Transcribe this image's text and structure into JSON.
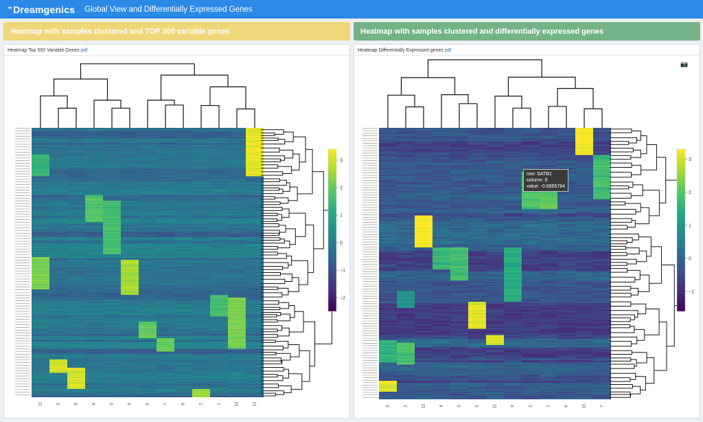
{
  "header": {
    "logo": "Dreamgenics",
    "title": "Global View and Differentially Expressed Genes"
  },
  "left_panel": {
    "heading": "Heatmap with samples clustered and TOP 500 variable genes",
    "box_title": "Heatmap Top 500 Variable Genes",
    "pdf_link": "pdf"
  },
  "right_panel": {
    "heading": "Heatmap with samples clustered and differentially expressed genes",
    "box_title": "Heatmap Differentially Expressed genes",
    "pdf_link": "pdf",
    "camera_icon": "camera-icon",
    "tooltip": {
      "row": "row: SATB1",
      "column": "column: 9",
      "value": "value: -0.6865784"
    }
  },
  "colors": {
    "header": "#2b8ae6",
    "left_heading": "#f0d77a",
    "right_heading": "#74b388"
  },
  "chart_data": [
    {
      "type": "heatmap",
      "title": "Heatmap Top 500 Variable Genes",
      "columns": [
        "11",
        "3",
        "8",
        "4",
        "0",
        "9",
        "5",
        "7",
        "6",
        "2",
        "1",
        "10",
        "12"
      ],
      "n_rows": 500,
      "colorscale": "viridis",
      "colorbar_ticks": [
        3,
        2,
        1,
        0,
        -1,
        -2
      ],
      "colorbar_range": [
        -2.5,
        3.4
      ]
    },
    {
      "type": "heatmap",
      "title": "Heatmap Differentially Expressed genes",
      "columns": [
        "8",
        "3",
        "12",
        "4",
        "0",
        "5",
        "11",
        "9",
        "2",
        "1",
        "6",
        "10",
        "7"
      ],
      "n_rows": 220,
      "colorscale": "viridis",
      "colorbar_ticks": [
        3,
        2,
        1,
        0,
        -1
      ],
      "colorbar_range": [
        -1.6,
        3.3
      ]
    }
  ]
}
